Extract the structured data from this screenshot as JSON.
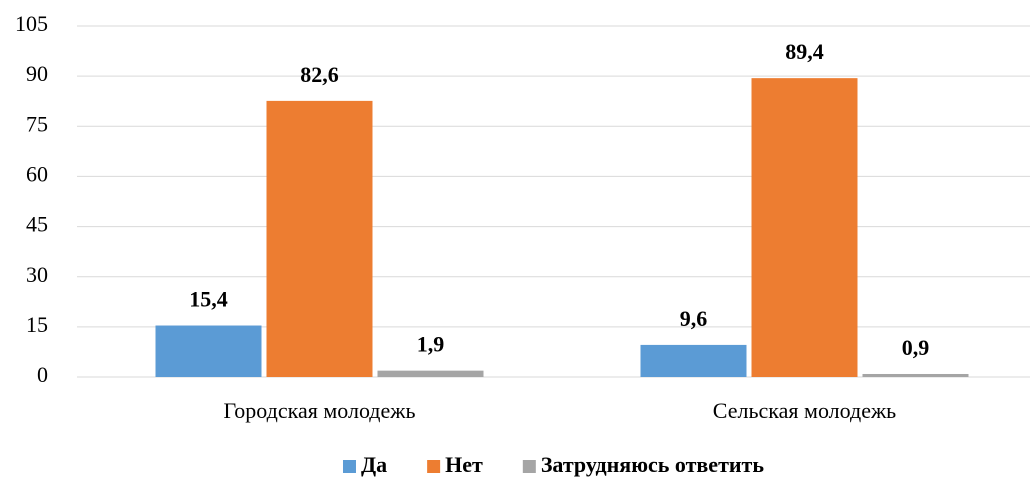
{
  "chart_data": {
    "type": "bar",
    "categories": [
      "Городская молодежь",
      "Сельская молодежь"
    ],
    "series": [
      {
        "name": "Да",
        "color": "#5b9bd5",
        "values": [
          15.4,
          9.6
        ],
        "value_labels": [
          "15,4",
          "9,6"
        ]
      },
      {
        "name": "Нет",
        "color": "#ed7d31",
        "values": [
          82.6,
          89.4
        ],
        "value_labels": [
          "82,6",
          "89,4"
        ]
      },
      {
        "name": "Затрудняюсь ответить",
        "color": "#a5a5a5",
        "values": [
          1.9,
          0.9
        ],
        "value_labels": [
          "1,9",
          "0,9"
        ]
      }
    ],
    "ylim": [
      0,
      105
    ],
    "yticks": [
      0,
      15,
      30,
      45,
      60,
      75,
      90,
      105
    ],
    "grid": true,
    "legend": "bottom"
  }
}
